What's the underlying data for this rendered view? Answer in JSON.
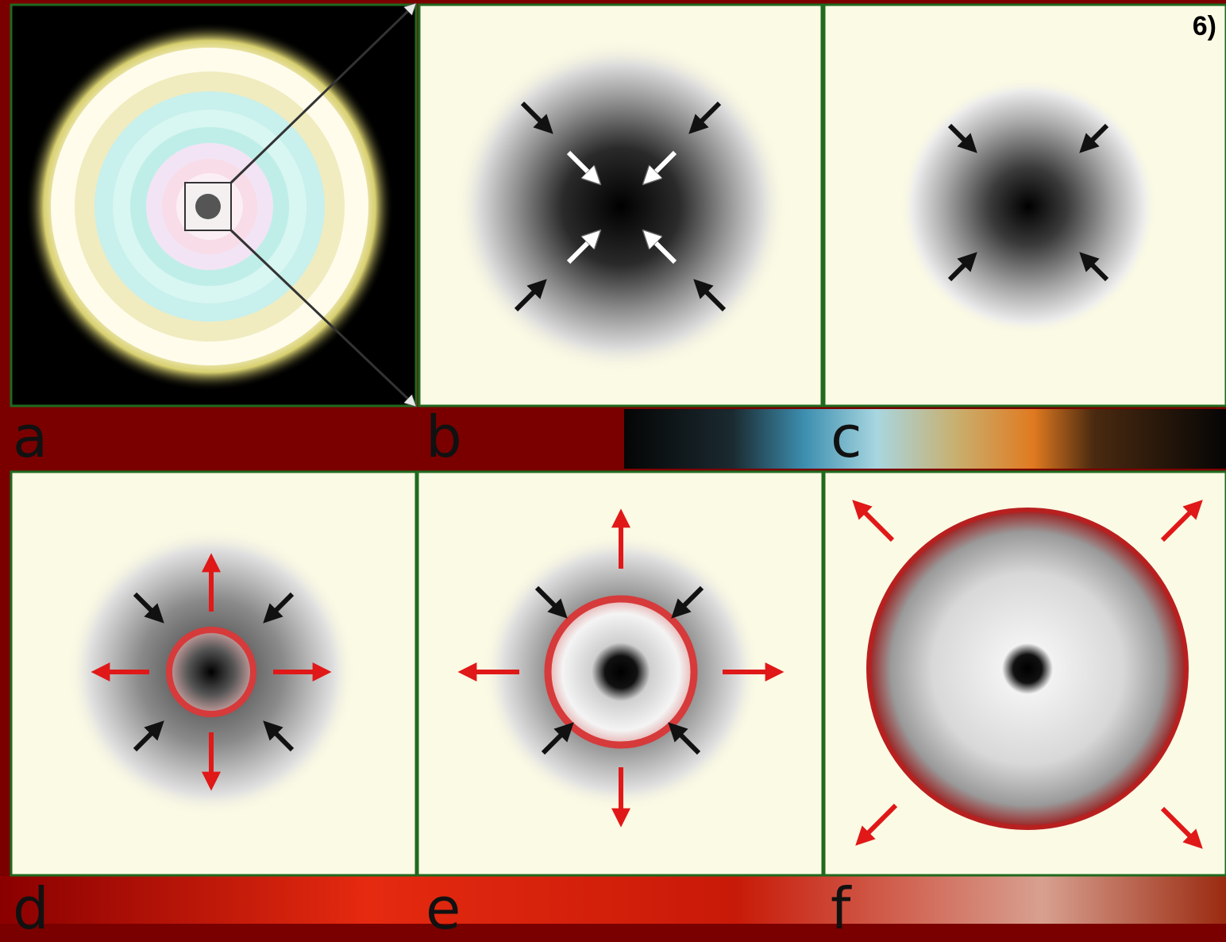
{
  "slide_number": "6)",
  "panels": [
    {
      "letter": "a",
      "content": "onion-shell-star-cross-section"
    },
    {
      "letter": "b",
      "content": "core-contraction-inward-arrows"
    },
    {
      "letter": "c",
      "content": "core-collapse"
    },
    {
      "letter": "d",
      "content": "shock-wave-formation"
    },
    {
      "letter": "e",
      "content": "shock-wave-expanding"
    },
    {
      "letter": "f",
      "content": "explosion-shell-expanding"
    }
  ],
  "colors": {
    "panel_bg": "#fbfae4",
    "panel_border": "#1f6a1f",
    "slide_bg": "#7a0000",
    "arrow_black": "#111111",
    "arrow_red": "#e01818",
    "shock_ring": "#d63a3a"
  }
}
